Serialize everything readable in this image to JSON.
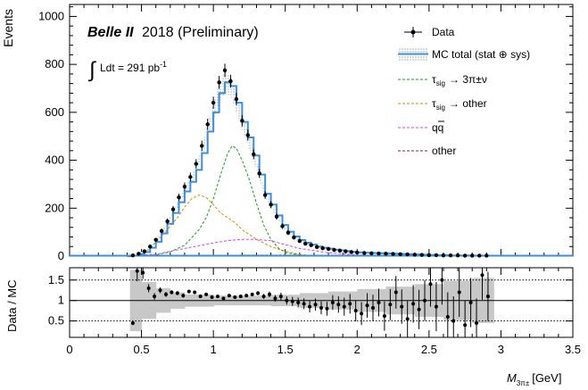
{
  "chart_data": [
    {
      "type": "line",
      "panel": "main",
      "ylabel": "Events",
      "ylim": [
        0,
        1050
      ],
      "yticks": [
        0,
        200,
        400,
        600,
        800,
        1000
      ],
      "xlim": [
        0,
        3.5
      ],
      "experiment": "Belle II",
      "experiment_suffix": "2018 (Preliminary)",
      "lumi_text": "Ldt = 291 pb",
      "lumi_exp": "-1",
      "legend": {
        "data": "Data",
        "mc_total": "MC total (stat ⊕ sys)",
        "tau_sig_3pi_sym": "τ",
        "tau_sig_3pi_sub": "sig",
        "tau_sig_3pi_rest": "→ 3π±ν",
        "tau_sig_other_sym": "τ",
        "tau_sig_other_sub": "sig",
        "tau_sig_other_rest": "→ other",
        "qq_label": "qq",
        "other": "other"
      },
      "colors": {
        "mc_total": "#3a8fe0",
        "mc_band": "#8a8a8a",
        "tau_sig_3pi": "#1a9a1a",
        "tau_sig_other": "#e08a00",
        "qq": "#e040e0",
        "other": "#7a2a2a"
      },
      "data": {
        "x": [
          0.44,
          0.48,
          0.52,
          0.56,
          0.6,
          0.64,
          0.68,
          0.72,
          0.76,
          0.8,
          0.84,
          0.88,
          0.92,
          0.96,
          1.0,
          1.04,
          1.08,
          1.12,
          1.16,
          1.2,
          1.24,
          1.28,
          1.32,
          1.36,
          1.4,
          1.44,
          1.48,
          1.52,
          1.56,
          1.6,
          1.64,
          1.68,
          1.72,
          1.76,
          1.8,
          1.84,
          1.88,
          1.92,
          1.96,
          2.0,
          2.05,
          2.1,
          2.15,
          2.2,
          2.25,
          2.3,
          2.35,
          2.4,
          2.45,
          2.5,
          2.55,
          2.6,
          2.65,
          2.7,
          2.75,
          2.8,
          2.85,
          2.9
        ],
        "y": [
          3,
          10,
          20,
          40,
          68,
          105,
          145,
          195,
          245,
          290,
          330,
          385,
          460,
          550,
          640,
          725,
          775,
          730,
          655,
          565,
          505,
          425,
          345,
          255,
          215,
          165,
          125,
          98,
          78,
          63,
          52,
          46,
          38,
          33,
          30,
          26,
          23,
          20,
          17,
          15,
          13,
          12,
          11,
          10,
          9,
          8,
          7,
          6,
          5,
          4,
          4,
          3,
          3,
          3,
          2,
          2,
          2,
          2
        ]
      },
      "mc_total": {
        "x": [
          0.4,
          0.44,
          0.48,
          0.52,
          0.56,
          0.6,
          0.64,
          0.68,
          0.72,
          0.76,
          0.8,
          0.84,
          0.88,
          0.92,
          0.96,
          1.0,
          1.04,
          1.08,
          1.12,
          1.16,
          1.2,
          1.24,
          1.28,
          1.32,
          1.36,
          1.4,
          1.44,
          1.48,
          1.52,
          1.56,
          1.6,
          1.64,
          1.68,
          1.72,
          1.76,
          1.8,
          1.84,
          1.88,
          1.92,
          1.96,
          2.0,
          2.05,
          2.1,
          2.15,
          2.2,
          2.25,
          2.3,
          2.35,
          2.4,
          2.45,
          2.5,
          2.55,
          2.6,
          2.65,
          2.7,
          2.75,
          2.8,
          2.85,
          2.9,
          2.95
        ],
        "y": [
          0,
          2,
          8,
          17,
          35,
          60,
          95,
          135,
          180,
          225,
          270,
          310,
          360,
          430,
          520,
          600,
          680,
          725,
          710,
          640,
          560,
          495,
          420,
          340,
          260,
          215,
          170,
          130,
          102,
          82,
          67,
          56,
          48,
          40,
          35,
          31,
          27,
          24,
          21,
          18,
          16,
          14,
          13,
          12,
          11,
          10,
          9,
          8,
          7,
          6,
          5,
          4,
          4,
          3,
          3,
          3,
          2,
          2,
          2,
          0
        ]
      },
      "tau_sig_3pi": {
        "x": [
          0.45,
          0.6,
          0.7,
          0.8,
          0.9,
          0.95,
          1.0,
          1.05,
          1.1,
          1.13,
          1.16,
          1.2,
          1.25,
          1.3,
          1.35,
          1.4,
          1.45,
          1.5,
          1.6,
          1.7
        ],
        "y": [
          0,
          5,
          18,
          45,
          110,
          160,
          240,
          340,
          430,
          460,
          450,
          400,
          320,
          220,
          130,
          70,
          35,
          15,
          5,
          0
        ]
      },
      "tau_sig_other": {
        "x": [
          0.45,
          0.55,
          0.65,
          0.75,
          0.8,
          0.85,
          0.9,
          0.95,
          1.0,
          1.05,
          1.1,
          1.15,
          1.2,
          1.3,
          1.4,
          1.5,
          1.6,
          1.7
        ],
        "y": [
          0,
          28,
          90,
          160,
          205,
          240,
          255,
          245,
          215,
          180,
          160,
          140,
          110,
          70,
          40,
          20,
          8,
          0
        ]
      },
      "qq": {
        "x": [
          0.4,
          0.6,
          0.8,
          1.0,
          1.1,
          1.2,
          1.3,
          1.4,
          1.5,
          1.6,
          1.8,
          2.0,
          2.2
        ],
        "y": [
          0,
          8,
          32,
          55,
          65,
          70,
          70,
          64,
          48,
          32,
          14,
          5,
          0
        ]
      },
      "other": {
        "x": [
          0.4,
          0.8,
          1.2,
          1.6,
          2.0,
          2.4
        ],
        "y": [
          0,
          2,
          4,
          4,
          2,
          0
        ]
      }
    },
    {
      "type": "scatter",
      "panel": "ratio",
      "ylabel": "Data / MC",
      "ylim": [
        0.1,
        1.8
      ],
      "yticks": [
        0.5,
        1,
        1.5
      ],
      "xlim": [
        0,
        3.5
      ],
      "xticks": [
        0,
        0.5,
        1,
        1.5,
        2,
        2.5,
        3,
        3.5
      ],
      "xlabel_symbol": "M",
      "xlabel_sub": "3π±",
      "xlabel_unit": "[GeV]",
      "x": [
        0.44,
        0.47,
        0.51,
        0.55,
        0.59,
        0.63,
        0.67,
        0.71,
        0.75,
        0.79,
        0.83,
        0.87,
        0.91,
        0.95,
        0.99,
        1.03,
        1.07,
        1.11,
        1.15,
        1.19,
        1.23,
        1.27,
        1.31,
        1.35,
        1.39,
        1.43,
        1.47,
        1.51,
        1.55,
        1.59,
        1.63,
        1.67,
        1.71,
        1.75,
        1.79,
        1.83,
        1.87,
        1.91,
        1.95,
        1.99,
        2.03,
        2.07,
        2.11,
        2.15,
        2.19,
        2.23,
        2.27,
        2.31,
        2.35,
        2.39,
        2.43,
        2.47,
        2.51,
        2.55,
        2.59,
        2.63,
        2.67,
        2.71,
        2.75,
        2.79,
        2.83,
        2.87,
        2.91
      ],
      "y": [
        0.45,
        1.72,
        1.68,
        1.3,
        1.1,
        1.25,
        1.15,
        1.2,
        1.18,
        1.12,
        1.22,
        1.2,
        1.1,
        1.15,
        1.08,
        1.1,
        1.05,
        1.12,
        1.08,
        1.1,
        1.12,
        1.15,
        1.18,
        1.1,
        1.15,
        1.05,
        1.1,
        1.0,
        0.98,
        0.95,
        0.92,
        0.85,
        0.9,
        0.82,
        0.8,
        0.95,
        0.9,
        0.85,
        0.92,
        0.75,
        0.68,
        0.88,
        0.82,
        0.95,
        0.62,
        0.9,
        1.2,
        0.85,
        0.55,
        0.92,
        0.78,
        1.0,
        1.4,
        0.85,
        1.5,
        0.6,
        0.5,
        1.2,
        0.4,
        0.95,
        0.45,
        1.62,
        1.1
      ],
      "yerr": [
        0.05,
        0.25,
        0.15,
        0.1,
        0.08,
        0.07,
        0.06,
        0.05,
        0.05,
        0.05,
        0.04,
        0.04,
        0.04,
        0.04,
        0.03,
        0.03,
        0.03,
        0.03,
        0.03,
        0.04,
        0.04,
        0.04,
        0.05,
        0.06,
        0.07,
        0.08,
        0.09,
        0.1,
        0.11,
        0.12,
        0.13,
        0.14,
        0.15,
        0.16,
        0.17,
        0.18,
        0.2,
        0.22,
        0.24,
        0.26,
        0.28,
        0.3,
        0.32,
        0.34,
        0.36,
        0.38,
        0.4,
        0.42,
        0.44,
        0.46,
        0.48,
        0.5,
        0.55,
        0.6,
        0.6,
        0.6,
        0.6,
        0.6,
        0.6,
        0.6,
        0.6,
        0.6,
        0.6
      ],
      "band_x": [
        0.42,
        0.5,
        0.6,
        0.7,
        0.8,
        1.0,
        1.2,
        1.4,
        1.6,
        1.8,
        2.0,
        2.2,
        2.4,
        2.6,
        2.8,
        2.95
      ],
      "band_half": [
        0.75,
        0.45,
        0.3,
        0.2,
        0.15,
        0.12,
        0.12,
        0.14,
        0.18,
        0.22,
        0.28,
        0.34,
        0.4,
        0.48,
        0.55,
        0.6
      ]
    }
  ]
}
